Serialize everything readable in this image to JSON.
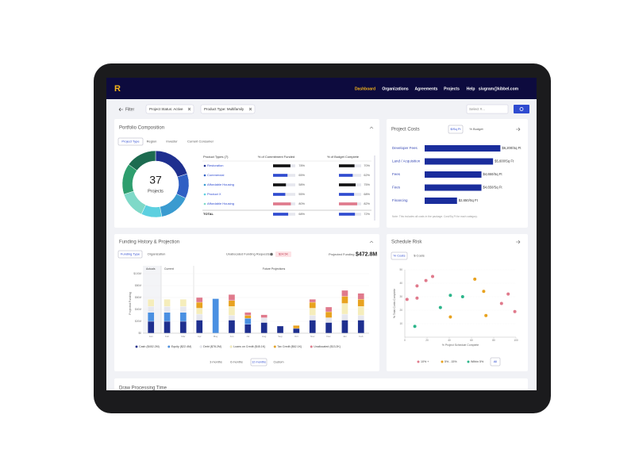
{
  "nav": {
    "logo": "R",
    "items": [
      "Dashboard",
      "Organizations",
      "Agreements",
      "Projects",
      "Help"
    ],
    "user": "sivgram@kibbel.com"
  },
  "filters": {
    "label": "Filter",
    "chips": [
      "Project Status: Active",
      "Product Type: Multifamily"
    ],
    "select": "Select #..."
  },
  "portfolio": {
    "title": "Portfolio Composition",
    "tabs": [
      "Project Type",
      "Region",
      "Investor",
      "Current Consumer"
    ],
    "donut": {
      "total": 37,
      "label": "Projects",
      "values": [
        20,
        12,
        15,
        10,
        13,
        15,
        15
      ],
      "colors": [
        "#1e2f8f",
        "#2f5fc4",
        "#3a9bd0",
        "#5cd0e0",
        "#7fd9c8",
        "#2e9e6e",
        "#1d6b50"
      ]
    },
    "headers": [
      "Product Types (7)",
      "% of Commitment Funded",
      "% of Budget Complete"
    ],
    "rows": [
      {
        "name": "Restoration",
        "color": "#1e2f8f",
        "commit": 78,
        "commit_label": "78%",
        "budget": 70,
        "budget_label": "70%"
      },
      {
        "name": "Commercial",
        "color": "#2f5fc4",
        "commit": 65,
        "commit_label": "65%",
        "budget": 62,
        "budget_label": "62%"
      },
      {
        "name": "Affordable Housing",
        "color": "#3a9bd0",
        "commit": 58,
        "commit_label": "58%",
        "budget": 75,
        "budget_label": "75%"
      },
      {
        "name": "Product X",
        "color": "#5cd0e0",
        "commit": 55,
        "commit_label": "55%",
        "budget": 68,
        "budget_label": "68%"
      },
      {
        "name": "Affordable Housing",
        "color": "#7fd9c8",
        "commit": 80,
        "commit_label": "80%",
        "budget": 82,
        "budget_label": "82%"
      },
      {
        "name": "TOTAL",
        "color": "#1e2f8f",
        "commit": 68,
        "commit_label": "68%",
        "budget": 72,
        "budget_label": "72%"
      }
    ]
  },
  "costs": {
    "title": "Project Costs",
    "toggles": [
      "$/Sq Ft",
      "% Budget"
    ],
    "categories": [
      "Developer Fees",
      "Land / Acquisition",
      "Fees",
      "Fees",
      "Financing"
    ],
    "values": [
      6200,
      5600,
      4650,
      4650,
      2650
    ],
    "value_labels": [
      "$6,200/Sq Ft",
      "$5,600/Sq Ft",
      "$4,650/Sq Ft",
      "$4,650/Sq Ft",
      "$2,650/Sq Ft"
    ],
    "color": "#1a2d9c",
    "xlim": [
      0,
      6500
    ],
    "note": "Note: This includes all costs in the package. Cost/Sq Ft for each category."
  },
  "funding": {
    "title": "Funding History & Projection",
    "tabs": [
      "Funding Type",
      "Organization"
    ],
    "unallocated_label": "Unallocated Funding Requests",
    "unallocated_badge": "$24.5K",
    "projected_label": "Projected Funding",
    "projected_value": "$472.8M",
    "sections": [
      "Actuals",
      "Current",
      "Future Projections"
    ],
    "chart": {
      "type": "bar",
      "stacked": true,
      "ylabel": "Projected Funding",
      "categories": [
        "Jan",
        "Feb",
        "Mar",
        "Apr",
        "May",
        "Jun",
        "Jul",
        "Aug",
        "Sep",
        "Oct",
        "Nov",
        "Dec",
        "Jan",
        "Feb"
      ],
      "ylim": [
        0,
        100
      ],
      "yticks": [
        {
          "value": 0,
          "label": "$0"
        },
        {
          "value": 20,
          "label": "$20M"
        },
        {
          "value": 40,
          "label": "$40M"
        },
        {
          "value": 60,
          "label": "$60M"
        },
        {
          "value": 80,
          "label": "$80M"
        },
        {
          "value": 100,
          "label": "$100M"
        }
      ],
      "series": [
        {
          "name": "Cash ($452.2M)",
          "color": "#1e2f8f",
          "values": [
            20,
            20,
            20,
            22,
            0,
            22,
            15,
            18,
            12,
            8,
            22,
            18,
            22,
            22
          ]
        },
        {
          "name": "Equity ($22.4M)",
          "color": "#4a90e2",
          "values": [
            15,
            15,
            15,
            0,
            58,
            0,
            10,
            0,
            0,
            0,
            0,
            0,
            0,
            0
          ]
        },
        {
          "name": "Debt ($78.2M)",
          "color": "#e6e7ee",
          "values": [
            10,
            10,
            10,
            10,
            0,
            8,
            0,
            8,
            0,
            0,
            8,
            8,
            10,
            8
          ]
        },
        {
          "name": "Loans on Credit ($45.1K)",
          "color": "#f5edbb",
          "values": [
            12,
            12,
            12,
            10,
            0,
            15,
            0,
            0,
            0,
            0,
            12,
            0,
            18,
            15
          ]
        },
        {
          "name": "Tax Credit ($62.1K)",
          "color": "#e8a21f",
          "values": [
            0,
            0,
            0,
            10,
            0,
            10,
            5,
            0,
            0,
            5,
            10,
            10,
            12,
            12
          ]
        },
        {
          "name": "Unallocated ($13.2K)",
          "color": "#e07a8c",
          "values": [
            0,
            0,
            0,
            8,
            0,
            10,
            5,
            5,
            0,
            0,
            5,
            8,
            10,
            10
          ]
        }
      ]
    },
    "ranges": [
      "3 months",
      "6 months",
      "12 months",
      "Custom"
    ]
  },
  "risk": {
    "title": "Schedule Risk",
    "tabs": [
      "% Costs",
      "$ Costs"
    ],
    "all": "All",
    "chart": {
      "type": "scatter",
      "xlabel": "% Project Schedule Complete",
      "ylabel": "% Total Costs Complete",
      "xlim": [
        0,
        100
      ],
      "ylim": [
        0,
        50
      ],
      "xticks": [
        0,
        20,
        40,
        60,
        80,
        100
      ],
      "yticks": [
        10,
        20,
        30,
        40,
        50
      ],
      "series": [
        {
          "name": "10% +",
          "color": "#e07a8c",
          "x": [
            11,
            19,
            25,
            2,
            11,
            87,
            93,
            99
          ],
          "y": [
            38,
            42,
            45,
            28,
            29,
            25,
            32,
            19
          ]
        },
        {
          "name": "5% - 15%",
          "color": "#e8a21f",
          "x": [
            63,
            71,
            41,
            73
          ],
          "y": [
            43,
            34,
            15,
            16
          ]
        },
        {
          "name": "Within 5%",
          "color": "#2bb58a",
          "x": [
            9,
            32,
            41,
            52
          ],
          "y": [
            8,
            22,
            31,
            30
          ]
        }
      ]
    }
  },
  "draw": {
    "title": "Draw Processing Time"
  }
}
